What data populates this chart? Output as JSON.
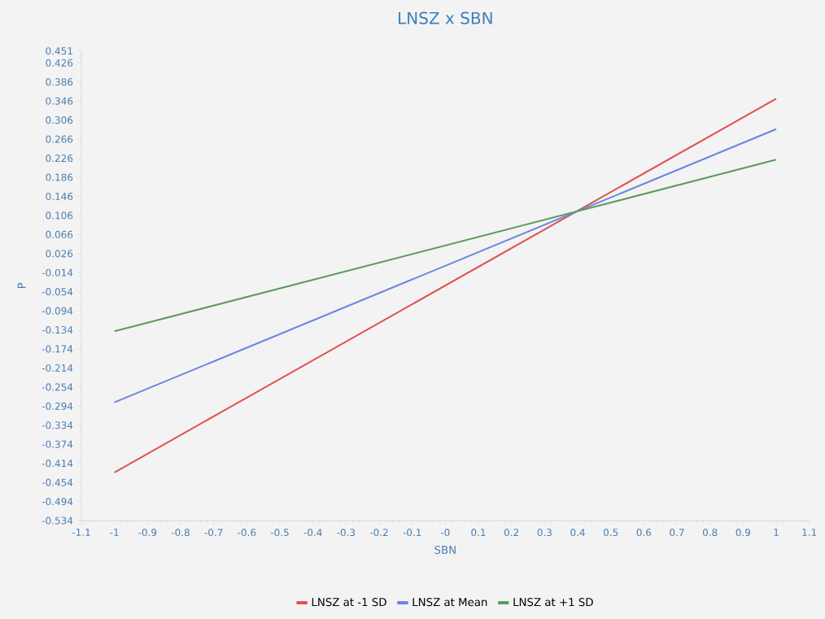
{
  "chart_data": {
    "type": "line",
    "title": "LNSZ x SBN",
    "xlabel": "SBN",
    "ylabel": "P",
    "x": [
      -1,
      1
    ],
    "series": [
      {
        "name": "LNSZ at -1 SD",
        "color": "#e05252",
        "values": [
          -0.433,
          0.351
        ]
      },
      {
        "name": "LNSZ at Mean",
        "color": "#6b84e0",
        "values": [
          -0.286,
          0.287
        ]
      },
      {
        "name": "LNSZ at +1 SD",
        "color": "#5e9a5e",
        "values": [
          -0.137,
          0.223
        ]
      }
    ],
    "xlim": [
      -1.1,
      1.1
    ],
    "xticks": [
      -1.1,
      -1,
      -0.9,
      -0.8,
      -0.7,
      -0.6,
      -0.5,
      -0.4,
      -0.3,
      -0.2,
      -0.1,
      {
        "value": 0,
        "label": "-0"
      },
      0.1,
      0.2,
      0.3,
      0.4,
      0.5,
      0.6,
      0.7,
      0.8,
      0.9,
      1,
      1.1
    ],
    "ylim": [
      -0.534,
      0.451
    ],
    "yticks": [
      0.451,
      0.426,
      0.386,
      0.346,
      0.306,
      0.266,
      0.226,
      0.186,
      0.146,
      0.106,
      0.066,
      0.026,
      -0.014,
      -0.054,
      -0.094,
      -0.134,
      -0.174,
      -0.214,
      -0.254,
      -0.294,
      -0.334,
      -0.374,
      -0.414,
      -0.454,
      -0.494,
      -0.534
    ],
    "grid": false,
    "legend": "bottom",
    "marker": "none",
    "line_style": "solid"
  }
}
